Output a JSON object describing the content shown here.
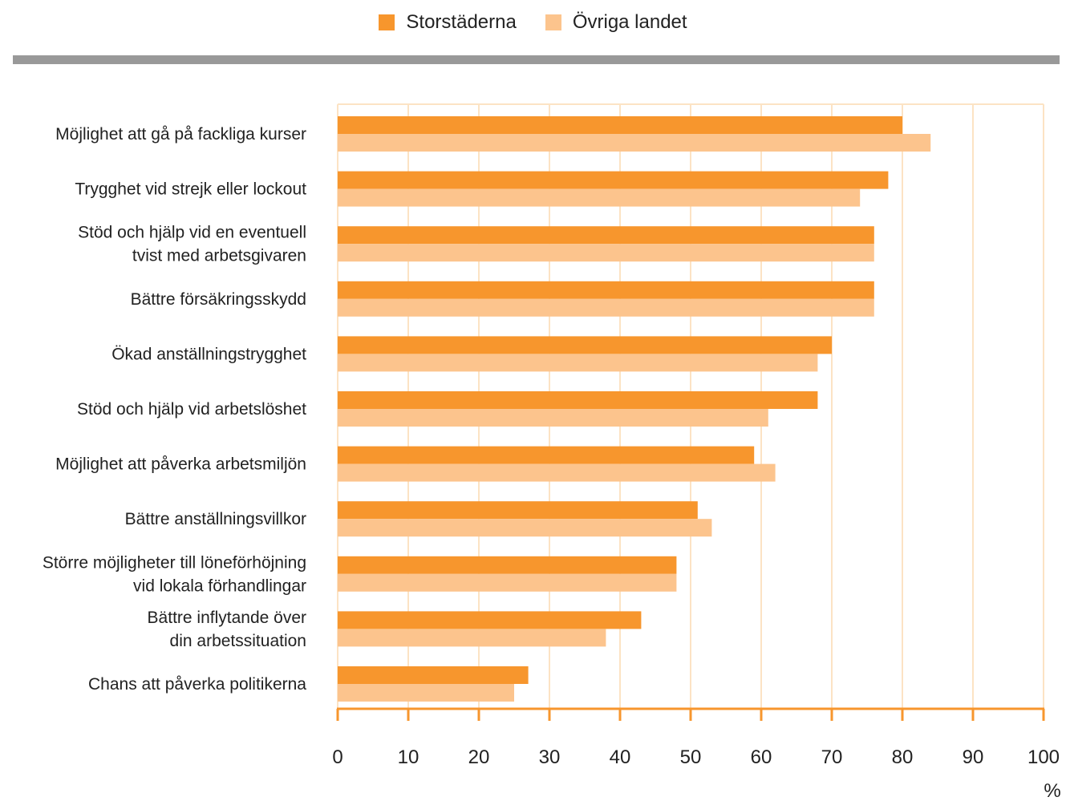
{
  "colors": {
    "series1": "#F7962D",
    "series2": "#FCC48D",
    "frame": "#FCE3C4",
    "axis": "#F7962D",
    "divider": "#999999"
  },
  "chart_data": {
    "type": "bar",
    "orientation": "horizontal",
    "categories": [
      [
        "Möjlighet att gå på fackliga kurser"
      ],
      [
        "Trygghet vid strejk eller lockout"
      ],
      [
        "Stöd och hjälp vid en eventuell",
        "tvist med arbetsgivaren"
      ],
      [
        "Bättre försäkringsskydd"
      ],
      [
        "Ökad anställningstrygghet"
      ],
      [
        "Stöd och hjälp vid arbetslöshet"
      ],
      [
        "Möjlighet att påverka arbetsmiljön"
      ],
      [
        "Bättre anställningsvillkor"
      ],
      [
        "Större möjligheter till löneförhöjning",
        "vid lokala förhandlingar"
      ],
      [
        "Bättre inflytande över",
        "din arbetssituation"
      ],
      [
        "Chans att påverka politikerna"
      ]
    ],
    "series": [
      {
        "name": "Storstäderna",
        "values": [
          80,
          78,
          76,
          76,
          70,
          68,
          59,
          51,
          48,
          43,
          27
        ]
      },
      {
        "name": "Övriga landet",
        "values": [
          84,
          74,
          76,
          76,
          68,
          61,
          62,
          53,
          48,
          38,
          25
        ]
      }
    ],
    "xlim": [
      0,
      100
    ],
    "xticks": [
      0,
      10,
      20,
      30,
      40,
      50,
      60,
      70,
      80,
      90,
      100
    ],
    "xunit": "%",
    "grid": true,
    "legend_position": "top-center"
  }
}
